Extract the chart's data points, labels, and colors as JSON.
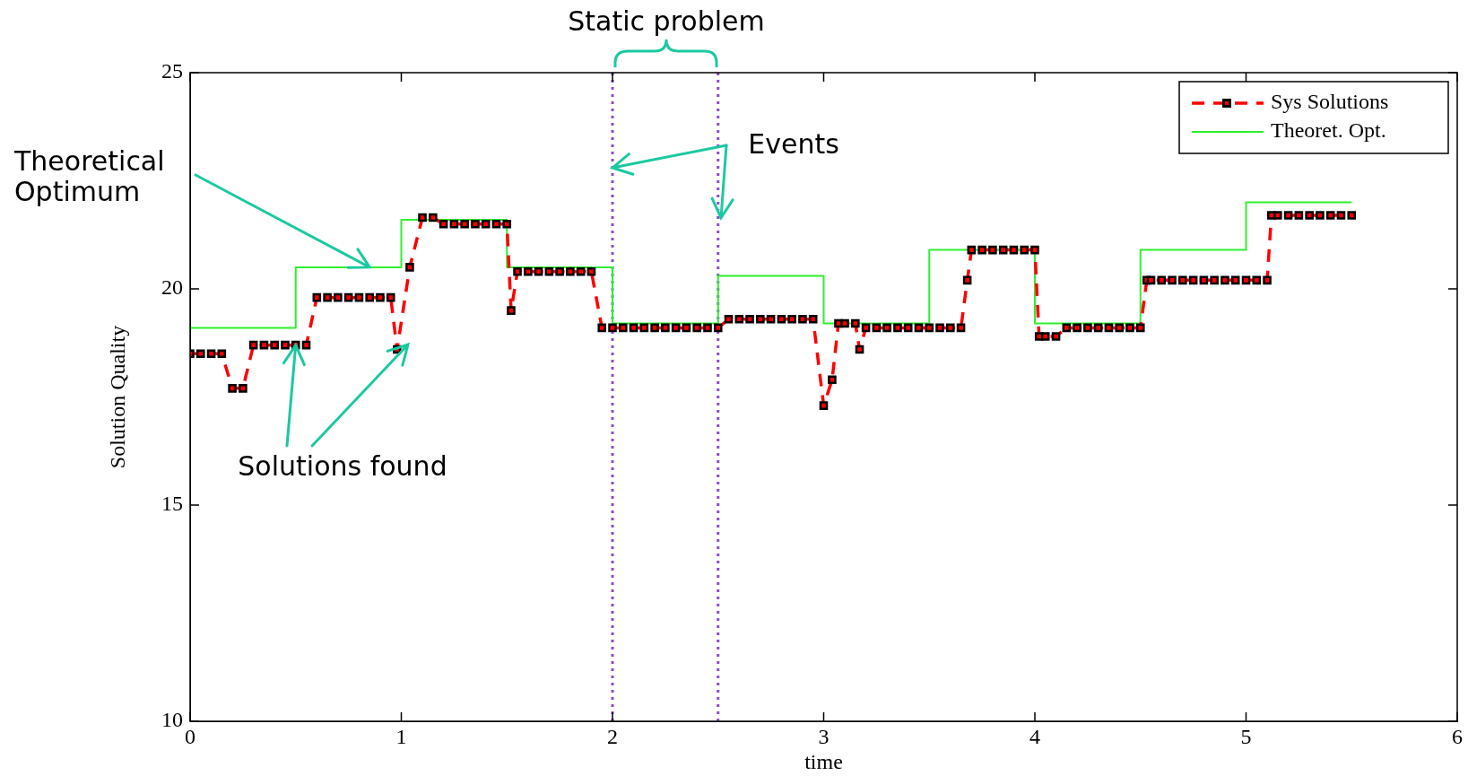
{
  "chart_data": {
    "type": "line",
    "xlabel": "time",
    "ylabel": "Solution Quality",
    "xlim": [
      0,
      6
    ],
    "xticks": [
      0,
      1,
      2,
      3,
      4,
      5,
      6
    ],
    "ylim": [
      10,
      25
    ],
    "yticks": [
      10,
      15,
      20,
      25
    ],
    "grid": false,
    "legend": "top right",
    "series": [
      {
        "name": "Sys Solutions",
        "color": "#ff0000",
        "marker": "square",
        "line_style": "dashed",
        "x": [
          0,
          0.05,
          0.1,
          0.15,
          0.2,
          0.25,
          0.3,
          0.35,
          0.4,
          0.45,
          0.5,
          0.55,
          0.6,
          0.65,
          0.7,
          0.75,
          0.8,
          0.85,
          0.9,
          0.95,
          0.98,
          1.04,
          1.1,
          1.15,
          1.2,
          1.25,
          1.3,
          1.35,
          1.4,
          1.45,
          1.5,
          1.52,
          1.55,
          1.6,
          1.65,
          1.7,
          1.75,
          1.8,
          1.85,
          1.9,
          1.95,
          2,
          2.05,
          2.1,
          2.15,
          2.2,
          2.25,
          2.3,
          2.35,
          2.4,
          2.45,
          2.5,
          2.55,
          2.6,
          2.65,
          2.7,
          2.75,
          2.8,
          2.85,
          2.9,
          2.95,
          3,
          3.04,
          3.07,
          3.1,
          3.15,
          3.17,
          3.2,
          3.25,
          3.3,
          3.35,
          3.4,
          3.45,
          3.5,
          3.55,
          3.6,
          3.65,
          3.68,
          3.7,
          3.75,
          3.8,
          3.85,
          3.9,
          3.95,
          4,
          4.02,
          4.05,
          4.1,
          4.15,
          4.2,
          4.25,
          4.3,
          4.35,
          4.4,
          4.45,
          4.5,
          4.53,
          4.55,
          4.6,
          4.65,
          4.7,
          4.75,
          4.8,
          4.85,
          4.9,
          4.95,
          5,
          5.05,
          5.1,
          5.12,
          5.15,
          5.2,
          5.25,
          5.3,
          5.35,
          5.4,
          5.45,
          5.5
        ],
        "values": [
          18.5,
          18.5,
          18.5,
          18.5,
          17.7,
          17.7,
          18.7,
          18.7,
          18.7,
          18.7,
          18.7,
          18.7,
          19.8,
          19.8,
          19.8,
          19.8,
          19.8,
          19.8,
          19.8,
          19.8,
          18.6,
          20.5,
          21.65,
          21.65,
          21.5,
          21.5,
          21.5,
          21.5,
          21.5,
          21.5,
          21.5,
          19.5,
          20.4,
          20.4,
          20.4,
          20.4,
          20.4,
          20.4,
          20.4,
          20.4,
          19.1,
          19.1,
          19.1,
          19.1,
          19.1,
          19.1,
          19.1,
          19.1,
          19.1,
          19.1,
          19.1,
          19.1,
          19.3,
          19.3,
          19.3,
          19.3,
          19.3,
          19.3,
          19.3,
          19.3,
          19.3,
          17.3,
          17.9,
          19.2,
          19.2,
          19.2,
          18.6,
          19.1,
          19.1,
          19.1,
          19.1,
          19.1,
          19.1,
          19.1,
          19.1,
          19.1,
          19.1,
          20.2,
          20.9,
          20.9,
          20.9,
          20.9,
          20.9,
          20.9,
          20.9,
          18.9,
          18.9,
          18.9,
          19.1,
          19.1,
          19.1,
          19.1,
          19.1,
          19.1,
          19.1,
          19.1,
          20.2,
          20.2,
          20.2,
          20.2,
          20.2,
          20.2,
          20.2,
          20.2,
          20.2,
          20.2,
          20.2,
          20.2,
          20.2,
          21.7,
          21.7,
          21.7,
          21.7,
          21.7,
          21.7,
          21.7,
          21.7,
          21.7
        ]
      },
      {
        "name": "Theoret. Opt.",
        "type": "step",
        "color": "#2ef02e",
        "x": [
          0,
          0.5,
          1,
          1.5,
          2,
          2.5,
          3,
          3.5,
          4,
          4.5,
          5,
          5.5
        ],
        "values": [
          19.1,
          20.5,
          21.6,
          20.5,
          19.2,
          20.3,
          19.2,
          20.9,
          19.2,
          20.9,
          22.0,
          22.0
        ]
      }
    ],
    "ref_lines": [
      {
        "axis": "x",
        "value": 2,
        "color": "#8a4fc4",
        "line_style": "dotted"
      },
      {
        "axis": "x",
        "value": 2.5,
        "color": "#8a4fc4",
        "line_style": "dotted"
      }
    ],
    "annotations": [
      "Static problem",
      {
        "text": "Events",
        "x": 2,
        "y": 22.8
      },
      {
        "text": "Theoretical\nOptimum",
        "x": 0.85,
        "y": 20.5
      },
      {
        "text": "Solutions found",
        "x": 0.5,
        "y": 18.7
      }
    ]
  }
}
